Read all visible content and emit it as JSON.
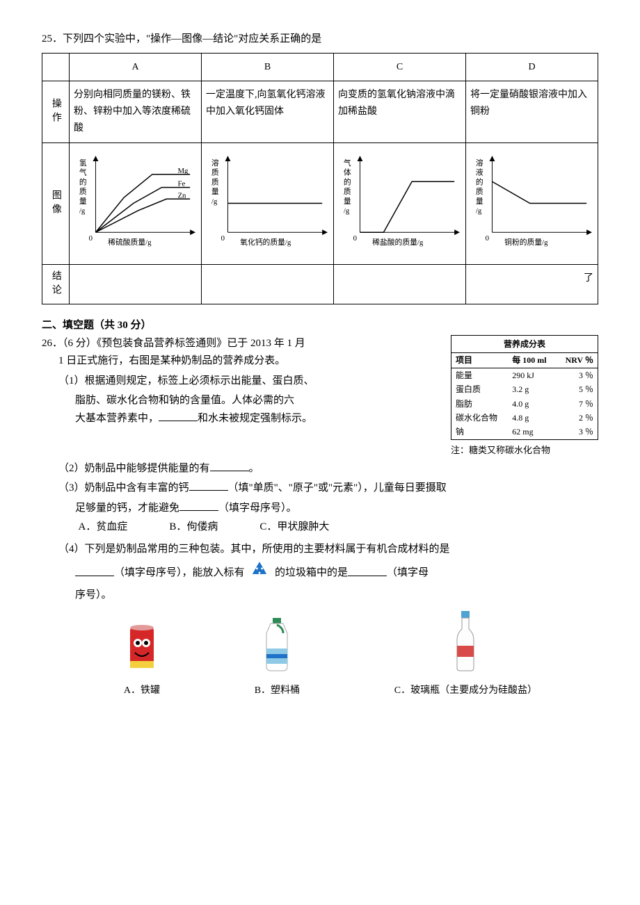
{
  "q25": {
    "number": "25．",
    "stem": "下列四个实验中，\"操作—图像—结论\"对应关系正确的是",
    "col_labels": [
      "A",
      "B",
      "C",
      "D"
    ],
    "row_labels": [
      "操作",
      "图像",
      "结论"
    ],
    "ops": [
      "分别向相同质量的镁粉、铁粉、锌粉中加入等浓度稀硫酸",
      "一定温度下,向氢氧化钙溶液中加入氧化钙固体",
      "向变质的氢氧化钠溶液中滴加稀盐酸",
      "将一定量硝酸银溶液中加入铜粉"
    ],
    "concl": [
      "",
      "",
      "",
      "了"
    ],
    "charts": {
      "axis_color": "#000000",
      "background": "#ffffff",
      "A": {
        "ylabel": [
          "氢",
          "气",
          "的",
          "质",
          "量",
          "/g"
        ],
        "xlabel": "稀硫酸质量/g",
        "series": [
          {
            "label": "Mg",
            "color": "#000",
            "pts": [
              [
                0,
                0
              ],
              [
                30,
                48
              ],
              [
                60,
                80
              ],
              [
                100,
                80
              ]
            ]
          },
          {
            "label": "Fe",
            "color": "#000",
            "pts": [
              [
                0,
                0
              ],
              [
                40,
                40
              ],
              [
                70,
                62
              ],
              [
                100,
                62
              ]
            ]
          },
          {
            "label": "Zn",
            "color": "#000",
            "pts": [
              [
                0,
                0
              ],
              [
                45,
                30
              ],
              [
                75,
                46
              ],
              [
                100,
                46
              ]
            ]
          }
        ]
      },
      "B": {
        "ylabel": [
          "溶",
          "质",
          "质",
          "量",
          "/g"
        ],
        "xlabel": "氧化钙的质量/g",
        "series": [
          {
            "color": "#000",
            "pts": [
              [
                0,
                40
              ],
              [
                100,
                40
              ]
            ]
          }
        ]
      },
      "C": {
        "ylabel": [
          "气",
          "体",
          "的",
          "质",
          "量",
          "/g"
        ],
        "xlabel": "稀盐酸的质量/g",
        "series": [
          {
            "color": "#000",
            "pts": [
              [
                0,
                0
              ],
              [
                25,
                0
              ],
              [
                55,
                70
              ],
              [
                100,
                70
              ]
            ]
          }
        ]
      },
      "D": {
        "ylabel": [
          "溶",
          "液",
          "的",
          "质",
          "量",
          "/g"
        ],
        "xlabel": "铜粉的质量/g",
        "series": [
          {
            "color": "#000",
            "pts": [
              [
                0,
                70
              ],
              [
                40,
                40
              ],
              [
                100,
                40
              ]
            ]
          }
        ]
      }
    }
  },
  "section2": "二、填空题（共 30 分）",
  "q26": {
    "number": "26．",
    "points": "（6 分）",
    "intro_l1": "《预包装食品营养标签通则》已于 2013 年 1 月",
    "intro_l2": "1 日正式施行，右图是某种奶制品的营养成分表。",
    "nutri": {
      "title": "营养成分表",
      "header": [
        "项目",
        "每 100 ml",
        "NRV ％"
      ],
      "rows": [
        [
          "能量",
          "290 kJ",
          "3 ％"
        ],
        [
          "蛋白质",
          "3.2 g",
          "5 ％"
        ],
        [
          "脂肪",
          "4.0 g",
          "7 ％"
        ],
        [
          "碳水化合物",
          "4.8 g",
          "2 ％"
        ],
        [
          "钠",
          "62 mg",
          "3 ％"
        ]
      ],
      "note": "注：糖类又称碳水化合物"
    },
    "p1a": "（1）根据通则规定，标签上必须标示出能量、蛋白质、",
    "p1b": "脂肪、碳水化合物和钠的含量值。人体必需的六",
    "p1c_pre": "大基本营养素中，",
    "p1c_post": "和水未被规定强制标示。",
    "p2_pre": "（2）奶制品中能够提供能量的有",
    "p2_post": "。",
    "p3a_pre": "（3）奶制品中含有丰富的钙",
    "p3a_mid": "（填\"单质\"、\"原子\"或\"元素\"），儿童每日要摄取",
    "p3b_pre": "足够量的钙，才能避免",
    "p3b_post": "（填字母序号）。",
    "p3_opts": {
      "A": "A．贫血症",
      "B": "B．佝偻病",
      "C": "C．甲状腺肿大"
    },
    "p4a": "（4）下列是奶制品常用的三种包装。其中，所使用的主要材料属于有机合成材料的是",
    "p4b_mid1": "（填字母序号），能放入标有",
    "p4b_mid2": "的垃圾箱中的是",
    "p4b_post": "（填字母",
    "p4c": "序号）。",
    "pkg_opts": {
      "A": "A．铁罐",
      "B": "B．塑料桶",
      "C": "C．玻璃瓶（主要成分为硅酸盐）"
    },
    "colors": {
      "recycle": "#1e73c8",
      "can_body": "#d62728",
      "can_face": "#ffffff",
      "plastic_body": "#ffffff",
      "plastic_cap": "#2e8b57",
      "plastic_label": "#8ecae6",
      "glass_body": "#f5f5f5",
      "glass_cap": "#4da3d1",
      "glass_label": "#d94a4a"
    }
  }
}
